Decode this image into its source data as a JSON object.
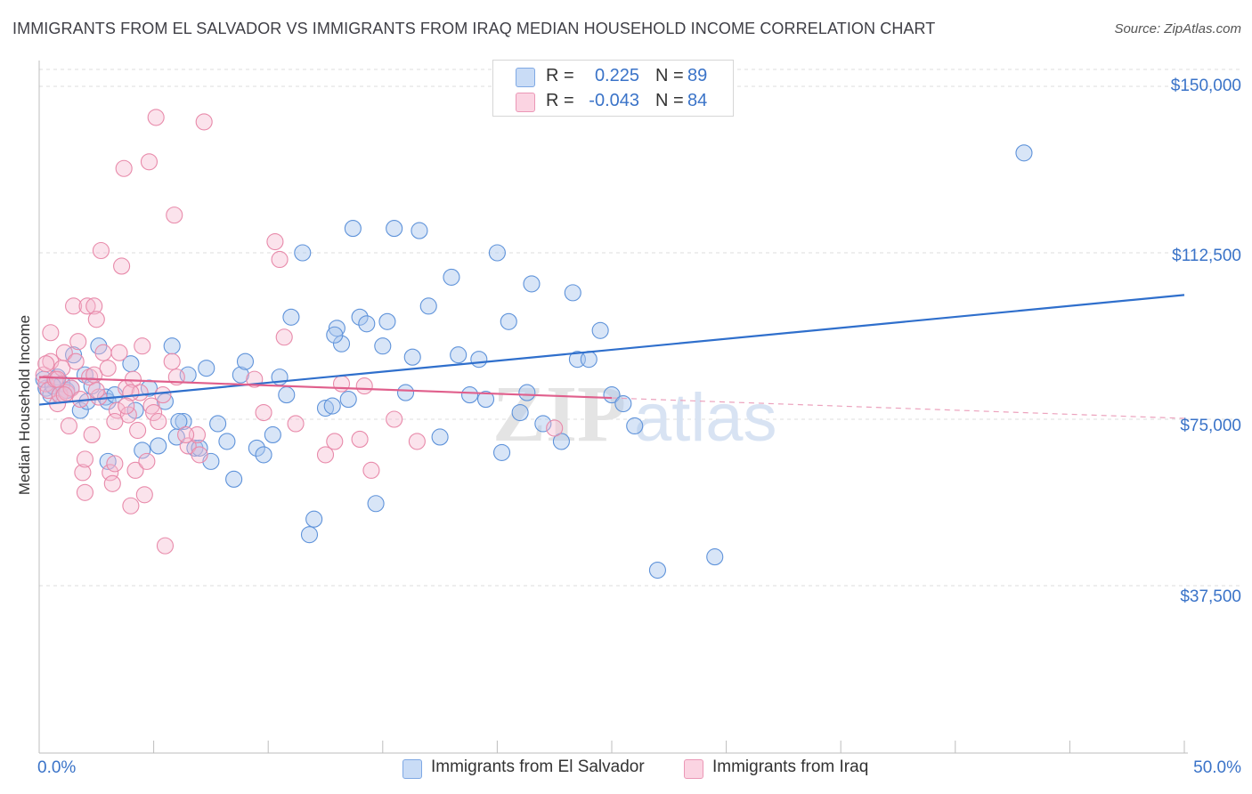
{
  "title": "IMMIGRANTS FROM EL SALVADOR VS IMMIGRANTS FROM IRAQ MEDIAN HOUSEHOLD INCOME CORRELATION CHART",
  "source": "Source: ZipAtlas.com",
  "watermark": {
    "zip": "ZIP",
    "atlas": "atlas"
  },
  "legend": {
    "rows": [
      {
        "r_label": "R =",
        "r_value": "0.225",
        "n_label": "N =",
        "n_value": "89",
        "color": "#a9c6ee"
      },
      {
        "r_label": "R =",
        "r_value": "-0.043",
        "n_label": "N =",
        "n_value": "84",
        "color": "#f6b9cf"
      }
    ]
  },
  "bottom_legend": [
    {
      "label": "Immigrants from El Salvador",
      "color": "#a9c6ee"
    },
    {
      "label": "Immigrants from Iraq",
      "color": "#f6b9cf"
    }
  ],
  "colors": {
    "blue": "#4a86d8",
    "blue_line": "#2f6fcc",
    "pink": "#e8719a",
    "pink_line": "#e05f8c",
    "tick_text": "#3a73c8"
  },
  "chart_data": {
    "type": "scatter",
    "ylabel": "Median Household Income",
    "xlim": [
      0,
      50
    ],
    "ylim": [
      0,
      150000
    ],
    "x_tick_labels": [
      "0.0%",
      "50.0%"
    ],
    "y_ticks": [
      {
        "value": 37500,
        "label": "$37,500"
      },
      {
        "value": 75000,
        "label": "$75,000"
      },
      {
        "value": 112500,
        "label": "$112,500"
      },
      {
        "value": 150000,
        "label": "$150,000"
      }
    ],
    "grid": "horizontal dashed",
    "series": [
      {
        "name": "Immigrants from El Salvador",
        "color": "#4a86d8",
        "trend": {
          "x0": 0,
          "y0": 78300,
          "x1": 50,
          "y1": 103000
        },
        "points": [
          [
            0.3,
            82000
          ],
          [
            0.5,
            80500
          ],
          [
            0.8,
            84500
          ],
          [
            1.0,
            83000
          ],
          [
            1.2,
            81500
          ],
          [
            1.5,
            89500
          ],
          [
            1.8,
            77000
          ],
          [
            2.0,
            85000
          ],
          [
            2.1,
            79000
          ],
          [
            2.3,
            82500
          ],
          [
            2.6,
            91500
          ],
          [
            2.9,
            80000
          ],
          [
            3.0,
            79000
          ],
          [
            3.3,
            80500
          ],
          [
            3.0,
            65500
          ],
          [
            4.0,
            87500
          ],
          [
            4.2,
            77000
          ],
          [
            4.5,
            68000
          ],
          [
            4.8,
            82000
          ],
          [
            5.2,
            69000
          ],
          [
            5.5,
            79000
          ],
          [
            5.8,
            91500
          ],
          [
            6.0,
            71000
          ],
          [
            6.3,
            74500
          ],
          [
            6.5,
            85000
          ],
          [
            6.8,
            68500
          ],
          [
            7.0,
            68500
          ],
          [
            7.3,
            86500
          ],
          [
            7.5,
            65500
          ],
          [
            7.8,
            74000
          ],
          [
            8.2,
            70000
          ],
          [
            8.5,
            61500
          ],
          [
            8.8,
            85000
          ],
          [
            9.0,
            88000
          ],
          [
            9.5,
            68500
          ],
          [
            9.8,
            67000
          ],
          [
            10.2,
            71500
          ],
          [
            10.5,
            84500
          ],
          [
            10.8,
            80500
          ],
          [
            11.0,
            98000
          ],
          [
            11.5,
            112500
          ],
          [
            11.8,
            49000
          ],
          [
            12.0,
            52500
          ],
          [
            12.5,
            77500
          ],
          [
            12.8,
            78000
          ],
          [
            13.0,
            95500
          ],
          [
            13.2,
            92000
          ],
          [
            13.5,
            79500
          ],
          [
            13.7,
            118000
          ],
          [
            14.0,
            98000
          ],
          [
            14.3,
            96500
          ],
          [
            14.7,
            56000
          ],
          [
            15.0,
            91500
          ],
          [
            15.2,
            97000
          ],
          [
            15.5,
            118000
          ],
          [
            16.0,
            81000
          ],
          [
            16.3,
            89000
          ],
          [
            16.6,
            117500
          ],
          [
            17.0,
            100500
          ],
          [
            17.5,
            71000
          ],
          [
            18.0,
            107000
          ],
          [
            18.3,
            89500
          ],
          [
            18.8,
            80500
          ],
          [
            19.2,
            88500
          ],
          [
            19.5,
            79500
          ],
          [
            20.0,
            112500
          ],
          [
            20.2,
            67500
          ],
          [
            20.5,
            97000
          ],
          [
            21.3,
            81000
          ],
          [
            21.5,
            105500
          ],
          [
            22.0,
            74000
          ],
          [
            22.8,
            70000
          ],
          [
            23.3,
            103500
          ],
          [
            23.5,
            88500
          ],
          [
            24.0,
            88500
          ],
          [
            24.5,
            95000
          ],
          [
            25.0,
            80500
          ],
          [
            25.5,
            78500
          ],
          [
            26.0,
            73500
          ],
          [
            27.0,
            41000
          ],
          [
            29.5,
            44000
          ],
          [
            0.2,
            84000
          ],
          [
            0.6,
            82500
          ],
          [
            1.4,
            82000
          ],
          [
            43.0,
            135000
          ],
          [
            0.9,
            80500
          ],
          [
            12.9,
            94000
          ],
          [
            21.0,
            76500
          ],
          [
            6.1,
            74500
          ]
        ]
      },
      {
        "name": "Immigrants from Iraq",
        "color": "#e8719a",
        "trend": {
          "x0": 0,
          "y0": 84500,
          "x1": 25,
          "y1": 79800
        },
        "trend_dashed": {
          "x0": 25,
          "y0": 79800,
          "x1": 50,
          "y1": 75200
        },
        "points": [
          [
            0.2,
            85000
          ],
          [
            0.3,
            83000
          ],
          [
            0.4,
            81500
          ],
          [
            0.5,
            88000
          ],
          [
            0.5,
            94500
          ],
          [
            0.7,
            84000
          ],
          [
            0.8,
            78500
          ],
          [
            0.9,
            80500
          ],
          [
            1.0,
            86500
          ],
          [
            1.1,
            90000
          ],
          [
            1.2,
            81000
          ],
          [
            1.3,
            73500
          ],
          [
            1.4,
            82000
          ],
          [
            1.5,
            100500
          ],
          [
            1.6,
            88000
          ],
          [
            1.7,
            92500
          ],
          [
            1.8,
            79500
          ],
          [
            1.9,
            63000
          ],
          [
            2.0,
            58500
          ],
          [
            2.0,
            66000
          ],
          [
            2.1,
            100500
          ],
          [
            2.2,
            84500
          ],
          [
            2.3,
            71500
          ],
          [
            2.4,
            85000
          ],
          [
            2.4,
            100500
          ],
          [
            2.5,
            97500
          ],
          [
            2.6,
            80000
          ],
          [
            2.7,
            113000
          ],
          [
            2.8,
            90000
          ],
          [
            3.0,
            86500
          ],
          [
            3.1,
            63000
          ],
          [
            3.2,
            60500
          ],
          [
            3.3,
            65000
          ],
          [
            3.4,
            77000
          ],
          [
            3.5,
            90000
          ],
          [
            3.6,
            109500
          ],
          [
            3.7,
            131500
          ],
          [
            3.8,
            82000
          ],
          [
            3.9,
            76000
          ],
          [
            4.0,
            55500
          ],
          [
            4.1,
            84000
          ],
          [
            4.2,
            63500
          ],
          [
            4.3,
            72500
          ],
          [
            4.4,
            81000
          ],
          [
            4.5,
            91500
          ],
          [
            4.6,
            58000
          ],
          [
            4.7,
            65500
          ],
          [
            4.8,
            133000
          ],
          [
            4.9,
            78000
          ],
          [
            5.0,
            76500
          ],
          [
            5.1,
            143000
          ],
          [
            5.2,
            74500
          ],
          [
            5.4,
            80500
          ],
          [
            5.5,
            46500
          ],
          [
            5.8,
            88000
          ],
          [
            5.9,
            121000
          ],
          [
            6.0,
            84500
          ],
          [
            6.5,
            69000
          ],
          [
            6.9,
            71500
          ],
          [
            7.0,
            67000
          ],
          [
            7.2,
            142000
          ],
          [
            9.8,
            76500
          ],
          [
            10.3,
            115000
          ],
          [
            10.5,
            111000
          ],
          [
            10.7,
            93500
          ],
          [
            11.2,
            74000
          ],
          [
            12.5,
            67000
          ],
          [
            12.9,
            70000
          ],
          [
            13.2,
            83000
          ],
          [
            14.0,
            70500
          ],
          [
            14.5,
            63500
          ],
          [
            15.5,
            75000
          ],
          [
            16.5,
            70000
          ],
          [
            22.5,
            73000
          ],
          [
            0.3,
            87500
          ],
          [
            0.8,
            84000
          ],
          [
            1.1,
            80500
          ],
          [
            2.5,
            81500
          ],
          [
            3.3,
            74500
          ],
          [
            4.0,
            81000
          ],
          [
            6.4,
            71500
          ],
          [
            9.4,
            84000
          ],
          [
            14.2,
            82500
          ],
          [
            3.8,
            78000
          ]
        ]
      }
    ]
  }
}
